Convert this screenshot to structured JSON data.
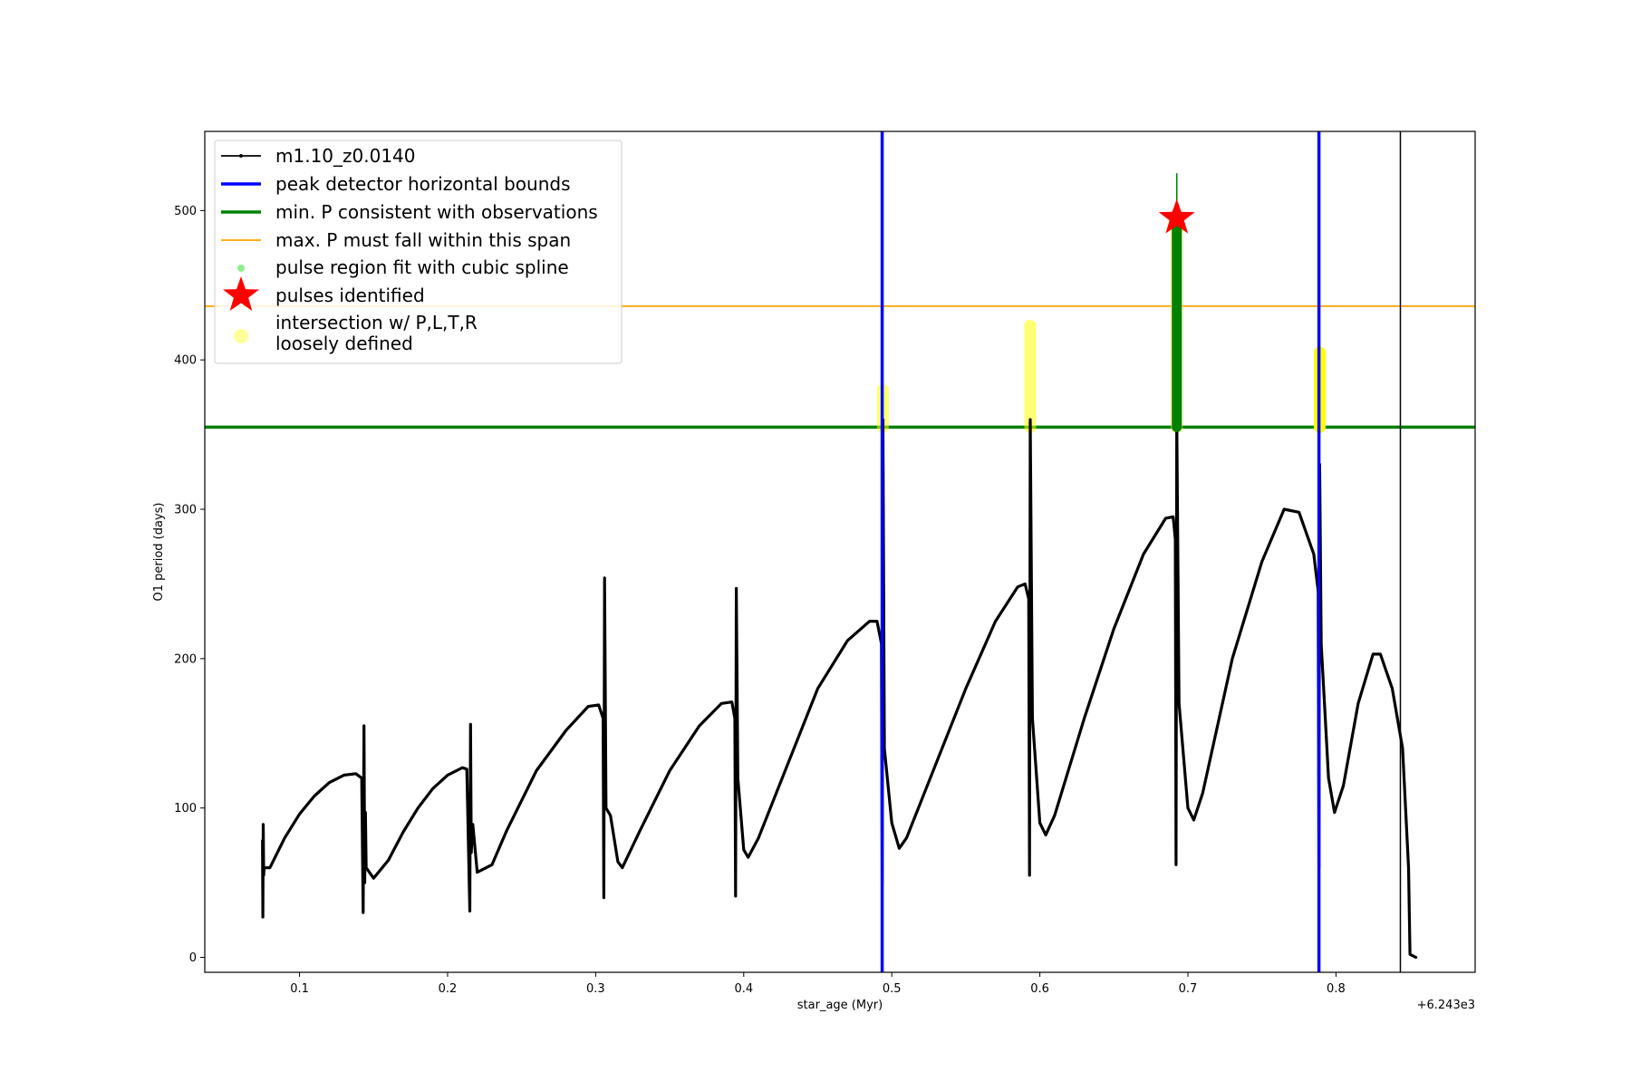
{
  "chart_data": {
    "type": "line",
    "xlabel": "star_age (Myr)",
    "ylabel": "O1 period (days)",
    "x_offset_label": "+6.243e3",
    "xlim": [
      0.036,
      0.894
    ],
    "ylim": [
      -10,
      553
    ],
    "xticks": [
      0.1,
      0.2,
      0.3,
      0.4,
      0.5,
      0.6,
      0.7,
      0.8
    ],
    "xtick_labels": [
      "0.1",
      "0.2",
      "0.3",
      "0.4",
      "0.5",
      "0.6",
      "0.7",
      "0.8"
    ],
    "yticks": [
      0,
      100,
      200,
      300,
      400,
      500
    ],
    "ytick_labels": [
      "0",
      "100",
      "200",
      "300",
      "400",
      "500"
    ],
    "grid": false,
    "legend_placement": "top-left",
    "colors": {
      "series": "#000000",
      "bounds": "#0000ff",
      "min_p": "#008000",
      "max_p": "#ffa500",
      "spline": "#90ee90",
      "pulse": "#ff0000",
      "loose": "#ffff00"
    },
    "legend": [
      {
        "label": "m1.10_z0.0140",
        "kind": "line-marker",
        "color": "#000000"
      },
      {
        "label": "peak detector horizontal bounds",
        "kind": "line-thick",
        "color": "#0000ff"
      },
      {
        "label": "min. P consistent with observations",
        "kind": "line-thick",
        "color": "#008000"
      },
      {
        "label": "max. P must fall within this span",
        "kind": "line-thin",
        "color": "#ffa500"
      },
      {
        "label": "pulse region fit with cubic spline",
        "kind": "dot",
        "color": "#90ee90"
      },
      {
        "label": "pulses identified",
        "kind": "star",
        "color": "#ff0000"
      },
      {
        "label": "intersection w/ P,L,T,R",
        "label2": "loosely defined",
        "kind": "big-dot",
        "color": "#ffff00"
      }
    ],
    "series": [
      {
        "name": "m1.10_z0.0140",
        "points": [
          [
            0.075,
            78
          ],
          [
            0.0752,
            27
          ],
          [
            0.0755,
            89
          ],
          [
            0.0758,
            55
          ],
          [
            0.076,
            60
          ],
          [
            0.08,
            60
          ],
          [
            0.09,
            80
          ],
          [
            0.1,
            96
          ],
          [
            0.11,
            108
          ],
          [
            0.12,
            117
          ],
          [
            0.13,
            122
          ],
          [
            0.138,
            123
          ],
          [
            0.142,
            120
          ],
          [
            0.143,
            30
          ],
          [
            0.1435,
            155
          ],
          [
            0.144,
            50
          ],
          [
            0.1445,
            97
          ],
          [
            0.145,
            60
          ],
          [
            0.15,
            53
          ],
          [
            0.16,
            65
          ],
          [
            0.17,
            84
          ],
          [
            0.18,
            100
          ],
          [
            0.19,
            113
          ],
          [
            0.2,
            122
          ],
          [
            0.21,
            127
          ],
          [
            0.213,
            126
          ],
          [
            0.215,
            31
          ],
          [
            0.2155,
            156
          ],
          [
            0.216,
            70
          ],
          [
            0.217,
            89
          ],
          [
            0.22,
            57
          ],
          [
            0.23,
            62
          ],
          [
            0.24,
            85
          ],
          [
            0.26,
            125
          ],
          [
            0.28,
            152
          ],
          [
            0.295,
            168
          ],
          [
            0.302,
            169
          ],
          [
            0.305,
            160
          ],
          [
            0.3055,
            40
          ],
          [
            0.306,
            254
          ],
          [
            0.307,
            100
          ],
          [
            0.31,
            95
          ],
          [
            0.315,
            64
          ],
          [
            0.318,
            60
          ],
          [
            0.33,
            85
          ],
          [
            0.35,
            125
          ],
          [
            0.37,
            155
          ],
          [
            0.385,
            170
          ],
          [
            0.392,
            171
          ],
          [
            0.394,
            160
          ],
          [
            0.3945,
            41
          ],
          [
            0.395,
            247
          ],
          [
            0.396,
            120
          ],
          [
            0.4,
            72
          ],
          [
            0.403,
            67
          ],
          [
            0.41,
            80
          ],
          [
            0.43,
            130
          ],
          [
            0.45,
            180
          ],
          [
            0.47,
            212
          ],
          [
            0.485,
            225
          ],
          [
            0.49,
            225
          ],
          [
            0.493,
            210
          ],
          [
            0.4935,
            50
          ],
          [
            0.494,
            360
          ],
          [
            0.495,
            140
          ],
          [
            0.5,
            90
          ],
          [
            0.505,
            73
          ],
          [
            0.51,
            80
          ],
          [
            0.53,
            130
          ],
          [
            0.55,
            180
          ],
          [
            0.57,
            225
          ],
          [
            0.585,
            248
          ],
          [
            0.59,
            250
          ],
          [
            0.5925,
            240
          ],
          [
            0.593,
            55
          ],
          [
            0.5935,
            360
          ],
          [
            0.595,
            160
          ],
          [
            0.6,
            90
          ],
          [
            0.604,
            82
          ],
          [
            0.61,
            95
          ],
          [
            0.63,
            160
          ],
          [
            0.65,
            220
          ],
          [
            0.67,
            270
          ],
          [
            0.685,
            294
          ],
          [
            0.69,
            295
          ],
          [
            0.6915,
            280
          ],
          [
            0.692,
            62
          ],
          [
            0.6925,
            360
          ],
          [
            0.694,
            170
          ],
          [
            0.7,
            100
          ],
          [
            0.704,
            92
          ],
          [
            0.71,
            110
          ],
          [
            0.73,
            200
          ],
          [
            0.75,
            265
          ],
          [
            0.765,
            300
          ],
          [
            0.775,
            298
          ],
          [
            0.785,
            270
          ],
          [
            0.788,
            245
          ],
          [
            0.7885,
            60
          ],
          [
            0.789,
            330
          ],
          [
            0.79,
            210
          ],
          [
            0.795,
            120
          ],
          [
            0.799,
            97
          ],
          [
            0.805,
            115
          ],
          [
            0.815,
            170
          ],
          [
            0.825,
            203
          ],
          [
            0.83,
            203
          ],
          [
            0.838,
            180
          ],
          [
            0.845,
            140
          ],
          [
            0.849,
            60
          ],
          [
            0.85,
            2
          ],
          [
            0.854,
            0
          ]
        ]
      }
    ],
    "bounds_x": [
      0.4935,
      0.7885
    ],
    "end_line_x": 0.8435,
    "min_p": 355,
    "max_p": 436,
    "loose_spans": [
      {
        "x": 0.494,
        "y_min": 355,
        "y_max": 380,
        "faint": true
      },
      {
        "x": 0.5935,
        "y_min": 355,
        "y_max": 423,
        "faint": true
      },
      {
        "x": 0.6925,
        "y_min": 355,
        "y_max": 495,
        "faint": true
      },
      {
        "x": 0.789,
        "y_min": 355,
        "y_max": 405,
        "faint": false
      }
    ],
    "spline_region": {
      "x": 0.6925,
      "y_min": 355,
      "y_max": 525
    },
    "pulse_points": [
      [
        0.6925,
        495
      ]
    ]
  }
}
